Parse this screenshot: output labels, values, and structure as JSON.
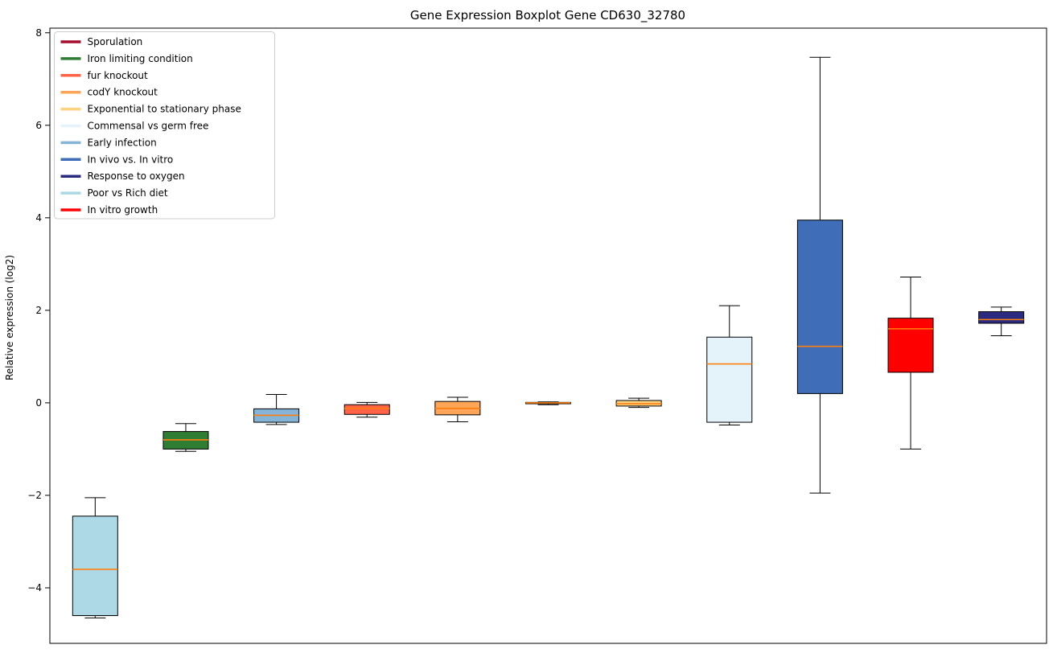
{
  "chart_data": {
    "type": "boxplot",
    "title": "Gene Expression Boxplot Gene CD630_32780",
    "xlabel": "",
    "ylabel": "Relative expression (log2)",
    "ylim": [
      -5.2,
      8.1
    ],
    "yticks": [
      8,
      6,
      4,
      2,
      0,
      -2,
      -4
    ],
    "grid": false,
    "legend_position": "upper left",
    "median_color": "#ff7f0e",
    "whisker_color": "#000000",
    "legend": [
      {
        "label": "Sporulation",
        "color": "#a50f2d"
      },
      {
        "label": "Iron limiting condition",
        "color": "#2e7d32"
      },
      {
        "label": "fur knockout",
        "color": "#ff6347"
      },
      {
        "label": "codY knockout",
        "color": "#ffa558"
      },
      {
        "label": "Exponential to stationary phase",
        "color": "#ffd27f"
      },
      {
        "label": "Commensal vs germ free",
        "color": "#e4f3fa"
      },
      {
        "label": "Early infection",
        "color": "#85b4d9"
      },
      {
        "label": "In vivo vs. In vitro",
        "color": "#3f6db8"
      },
      {
        "label": "Response to oxygen",
        "color": "#2a2a80"
      },
      {
        "label": "Poor vs Rich diet",
        "color": "#add8e6"
      },
      {
        "label": "In vitro growth",
        "color": "#ff0000"
      }
    ],
    "boxes": [
      {
        "name": "Poor vs Rich diet",
        "color": "#add8e6",
        "whislo": -4.65,
        "q1": -4.6,
        "med": -3.6,
        "q3": -2.45,
        "whishi": -2.05
      },
      {
        "name": "Iron limiting condition",
        "color": "#2e7d32",
        "whislo": -1.05,
        "q1": -1.0,
        "med": -0.8,
        "q3": -0.62,
        "whishi": -0.45
      },
      {
        "name": "Early infection",
        "color": "#85b4d9",
        "whislo": -0.47,
        "q1": -0.42,
        "med": -0.27,
        "q3": -0.13,
        "whishi": 0.18
      },
      {
        "name": "fur knockout",
        "color": "#ff6347",
        "whislo": -0.31,
        "q1": -0.25,
        "med": -0.12,
        "q3": -0.04,
        "whishi": 0.01
      },
      {
        "name": "codY knockout",
        "color": "#ffa558",
        "whislo": -0.41,
        "q1": -0.26,
        "med": -0.12,
        "q3": 0.03,
        "whishi": 0.12
      },
      {
        "name": "Sporulation",
        "color": "#a50f2d",
        "whislo": -0.04,
        "q1": -0.02,
        "med": 0.0,
        "q3": 0.01,
        "whishi": 0.02
      },
      {
        "name": "Exponential to stationary phase",
        "color": "#ffd27f",
        "whislo": -0.1,
        "q1": -0.07,
        "med": -0.02,
        "q3": 0.05,
        "whishi": 0.1
      },
      {
        "name": "Commensal vs germ free",
        "color": "#e4f3fa",
        "whislo": -0.48,
        "q1": -0.42,
        "med": 0.84,
        "q3": 1.42,
        "whishi": 2.1
      },
      {
        "name": "In vivo vs. In vitro",
        "color": "#3f6db8",
        "whislo": -1.95,
        "q1": 0.2,
        "med": 1.22,
        "q3": 3.95,
        "whishi": 7.47
      },
      {
        "name": "In vitro growth",
        "color": "#ff0000",
        "whislo": -1.0,
        "q1": 0.66,
        "med": 1.6,
        "q3": 1.83,
        "whishi": 2.72
      },
      {
        "name": "Response to oxygen",
        "color": "#2a2a80",
        "whislo": 1.45,
        "q1": 1.72,
        "med": 1.8,
        "q3": 1.97,
        "whishi": 2.07
      }
    ]
  }
}
